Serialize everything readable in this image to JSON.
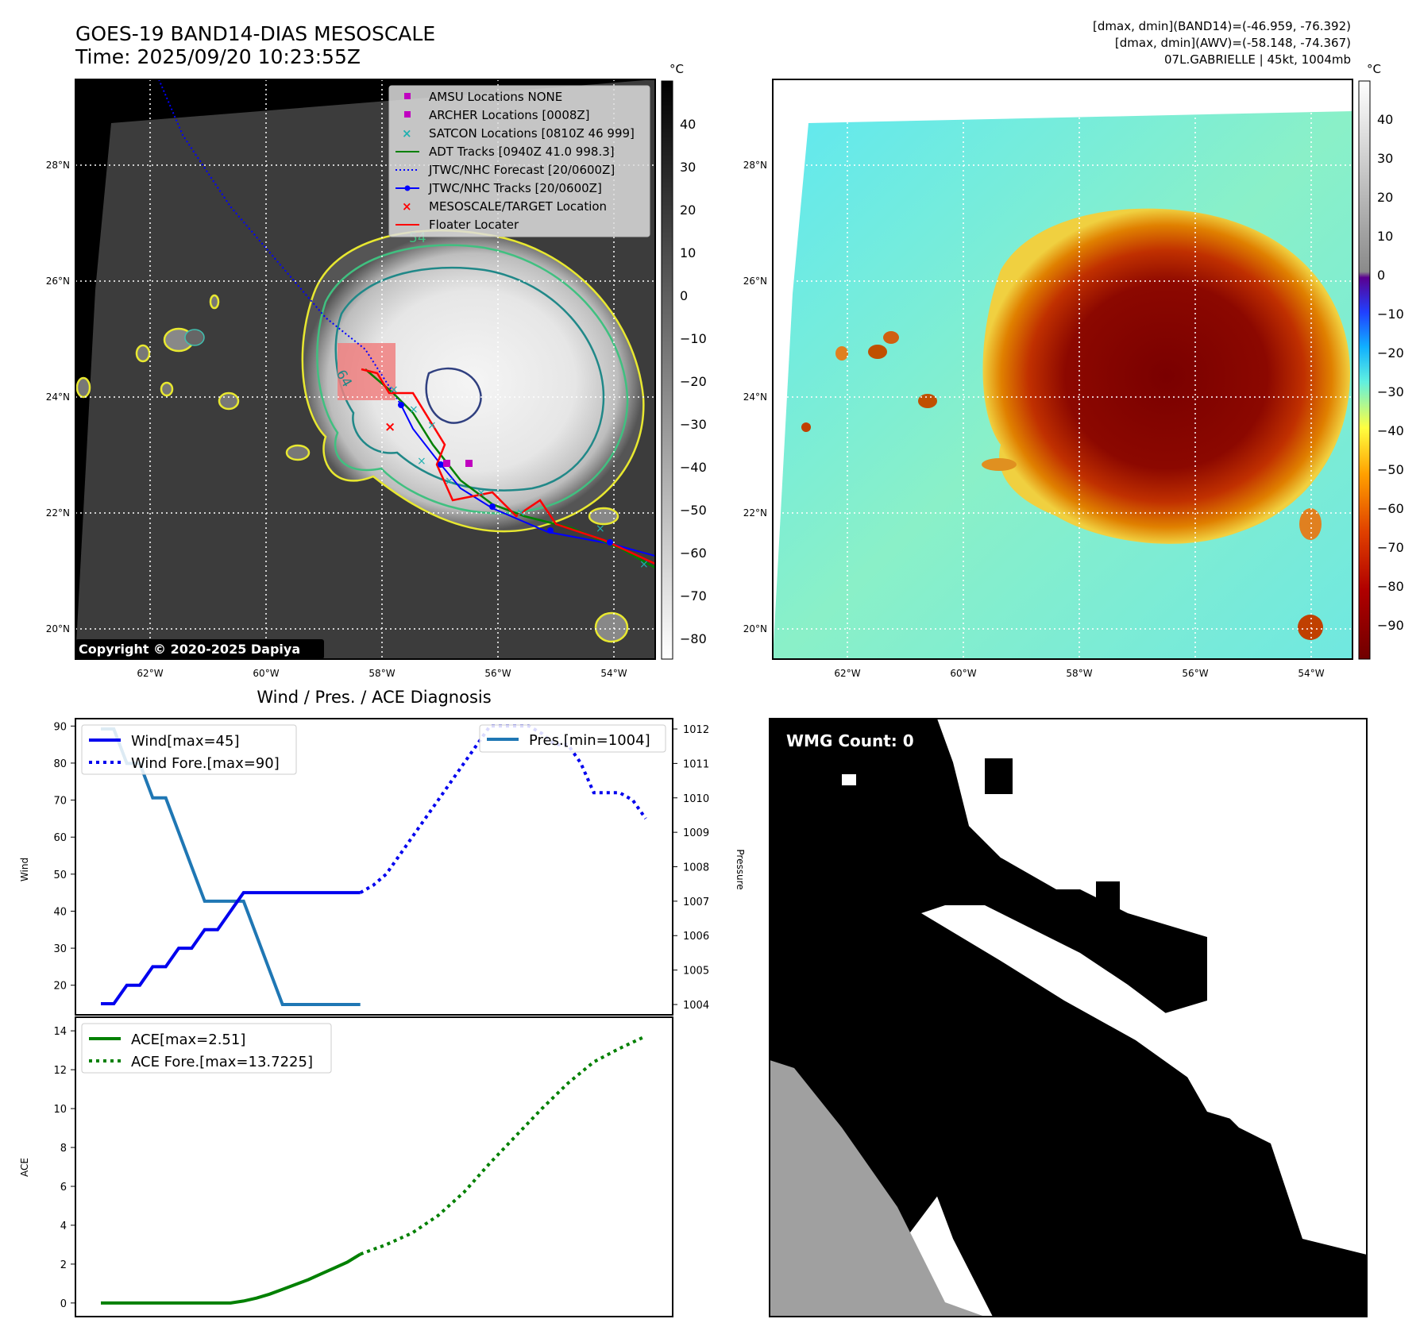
{
  "header": {
    "title_line1": "GOES-19 BAND14-DIAS MESOSCALE",
    "title_line2": "Time: 2025/09/20 10:23:55Z",
    "info_line1": "[dmax, dmin](BAND14)=(-46.959, -76.392)",
    "info_line2": "[dmax, dmin](AWV)=(-58.148, -74.367)",
    "info_line3": "07L.GABRIELLE | 45kt, 1004mb"
  },
  "map": {
    "lat_labels": [
      "28°N",
      "26°N",
      "24°N",
      "22°N",
      "20°N"
    ],
    "lon_labels": [
      "62°W",
      "60°W",
      "58°W",
      "56°W",
      "54°W"
    ],
    "contour_labels": [
      "54",
      "64"
    ],
    "copyright": "Copyright © 2020-2025 Dapiya",
    "legend": [
      "AMSU Locations NONE",
      "ARCHER Locations [0008Z]",
      "SATCON Locations [0810Z 46 999]",
      "ADT Tracks [0940Z 41.0 998.3]",
      "JTWC/NHC Forecast [20/0600Z]",
      "JTWC/NHC Tracks [20/0600Z]",
      "MESOSCALE/TARGET Location",
      "Floater Locater"
    ],
    "colors": {
      "amsu": "#c000c0",
      "archer": "#c000c0",
      "satcon": "#20b0b0",
      "adt": "#008000",
      "forecast": "#0000ff",
      "tracks": "#0000ff",
      "target": "#ff0000",
      "floater": "#ff0000"
    }
  },
  "colorbar_left": {
    "unit": "°C",
    "ticks": [
      "40",
      "30",
      "20",
      "10",
      "0",
      "−10",
      "−20",
      "−30",
      "−40",
      "−50",
      "−60",
      "−70",
      "−80"
    ]
  },
  "colorbar_right": {
    "unit": "°C",
    "ticks": [
      "40",
      "30",
      "20",
      "10",
      "0",
      "−10",
      "−20",
      "−30",
      "−40",
      "−50",
      "−60",
      "−70",
      "−80",
      "−90"
    ]
  },
  "wind_panel": {
    "title": "Wind / Pres. / ACE Diagnosis",
    "wind_ylabel": "Wind",
    "pres_ylabel": "Pressure",
    "ace_ylabel": "ACE",
    "wind_ticks": [
      "90",
      "80",
      "70",
      "60",
      "50",
      "40",
      "30",
      "20"
    ],
    "pres_ticks": [
      "1012",
      "1011",
      "1010",
      "1009",
      "1008",
      "1007",
      "1006",
      "1005",
      "1004"
    ],
    "ace_ticks": [
      "14",
      "12",
      "10",
      "8",
      "6",
      "4",
      "2",
      "0"
    ],
    "legend_wind": "Wind[max=45]",
    "legend_wind_fore": "Wind Fore.[max=90]",
    "legend_pres": "Pres.[min=1004]",
    "legend_ace": "ACE[max=2.51]",
    "legend_ace_fore": "ACE Fore.[max=13.7225]"
  },
  "wmg": {
    "label": "WMG Count: 0"
  },
  "chart_data": [
    {
      "type": "line",
      "title": "Wind / Pres. / ACE Diagnosis",
      "ylabel": "Wind",
      "ylim": [
        12,
        92
      ],
      "x": [
        0,
        1,
        2,
        3,
        4,
        5,
        6,
        7,
        8,
        9,
        10,
        11,
        12,
        13,
        14,
        15,
        16,
        17,
        18,
        19,
        20,
        21,
        22,
        23,
        24,
        25,
        26,
        27,
        28,
        29,
        30,
        31,
        32,
        33,
        34,
        35,
        36,
        37,
        38,
        39,
        40,
        41,
        42,
        43,
        44,
        45,
        46,
        47,
        48,
        49,
        50,
        51,
        52,
        53,
        54,
        55,
        56,
        57,
        58,
        59,
        60,
        61,
        62,
        63,
        64,
        65,
        66,
        67,
        68,
        69,
        70,
        71,
        72,
        73,
        74,
        75,
        76,
        77,
        78,
        79,
        80,
        81,
        82,
        83,
        84
      ],
      "series": [
        {
          "name": "Wind",
          "style": "solid",
          "color": "#0000ee",
          "x": [
            0,
            4,
            8,
            12,
            16,
            20,
            24,
            28,
            32,
            36,
            40,
            44,
            48,
            52,
            56,
            60,
            64,
            68,
            72,
            76,
            80
          ],
          "values": [
            15,
            15,
            20,
            20,
            25,
            25,
            30,
            30,
            35,
            35,
            40,
            45,
            45,
            45,
            45,
            45,
            45,
            45,
            45,
            45,
            45
          ]
        },
        {
          "name": "Wind Fore.",
          "style": "dotted",
          "color": "#0000ee",
          "x": [
            80,
            84,
            88,
            92,
            96,
            100,
            104,
            108,
            112,
            116,
            120,
            124,
            128,
            132,
            136,
            140,
            144,
            148,
            152,
            156,
            160,
            164,
            168
          ],
          "values": [
            45,
            47,
            50,
            55,
            60,
            65,
            70,
            75,
            80,
            85,
            90,
            90,
            90,
            90,
            88,
            85,
            85,
            80,
            72,
            72,
            72,
            70,
            65
          ]
        }
      ]
    },
    {
      "type": "line",
      "ylabel": "Pressure",
      "ylim": [
        1003.7,
        1012.3
      ],
      "series": [
        {
          "name": "Pres.",
          "style": "solid",
          "color": "#1f77b4",
          "x": [
            0,
            4,
            8,
            12,
            16,
            20,
            24,
            28,
            32,
            36,
            40,
            44,
            48,
            52,
            56,
            60,
            64,
            68,
            72,
            76,
            80
          ],
          "values": [
            1012,
            1012,
            1011,
            1011,
            1010,
            1010,
            1009,
            1008,
            1007,
            1007,
            1007,
            1007,
            1006,
            1005,
            1004,
            1004,
            1004,
            1004,
            1004,
            1004,
            1004
          ]
        }
      ]
    },
    {
      "type": "line",
      "ylabel": "ACE",
      "ylim": [
        -0.7,
        14.7
      ],
      "series": [
        {
          "name": "ACE",
          "style": "solid",
          "color": "#008000",
          "x": [
            0,
            10,
            20,
            30,
            40,
            44,
            48,
            52,
            56,
            60,
            64,
            68,
            72,
            76,
            80
          ],
          "values": [
            0,
            0,
            0,
            0,
            0,
            0.1,
            0.25,
            0.45,
            0.7,
            0.95,
            1.2,
            1.5,
            1.8,
            2.1,
            2.51
          ]
        },
        {
          "name": "ACE Fore.",
          "style": "dotted",
          "color": "#008000",
          "x": [
            80,
            88,
            96,
            104,
            112,
            120,
            128,
            136,
            144,
            152,
            160,
            168
          ],
          "values": [
            2.51,
            3.0,
            3.6,
            4.5,
            5.7,
            7.2,
            8.6,
            10.0,
            11.3,
            12.4,
            13.1,
            13.7225
          ]
        }
      ]
    }
  ]
}
